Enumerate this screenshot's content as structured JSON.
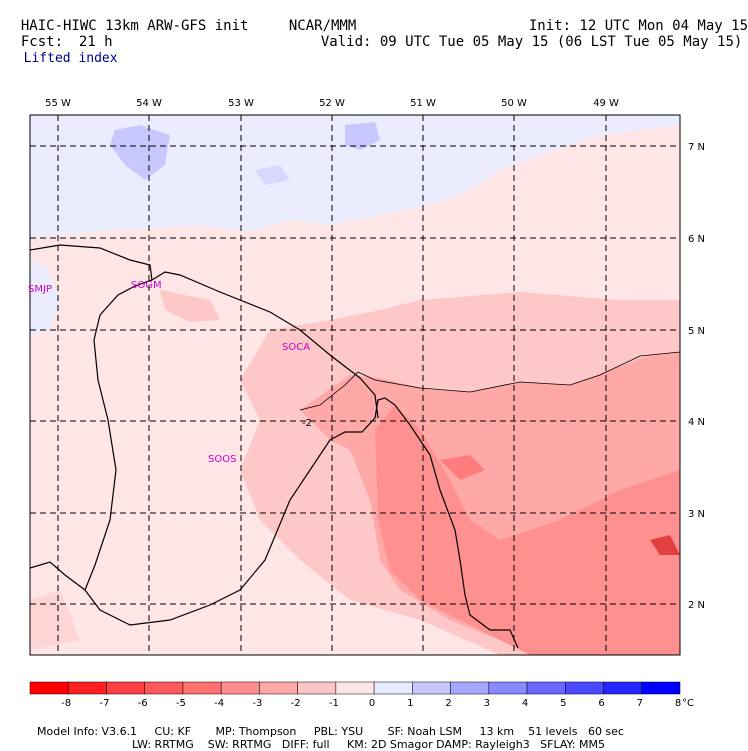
{
  "header": {
    "model_title": "HAIC-HIWC 13km ARW-GFS init",
    "center": "NCAR/MMM",
    "init_label": "Init: 12 UTC Mon 04 May 15",
    "fcst_label": "Fcst:",
    "fcst_value": "21 h",
    "valid_label": "Valid: 09 UTC Tue 05 May 15 (06 LST Tue 05 May 15)",
    "field_name": "Lifted index"
  },
  "map": {
    "longitudes": [
      "55 W",
      "54 W",
      "53 W",
      "52 W",
      "51 W",
      "50 W",
      "49 W"
    ],
    "latitudes": [
      "7 N",
      "6 N",
      "5 N",
      "4 N",
      "3 N",
      "2 N"
    ],
    "stations": [
      "SMJP",
      "SOGM",
      "SOCA",
      "SOOS"
    ],
    "contour_label": "-2"
  },
  "colorbar": {
    "ticks": [
      "-8",
      "-7",
      "-6",
      "-5",
      "-4",
      "-3",
      "-2",
      "-1",
      "0",
      "1",
      "2",
      "3",
      "4",
      "5",
      "6",
      "7",
      "8"
    ],
    "unit": "°C",
    "colors": [
      "#ff0000",
      "#ff2020",
      "#ff4040",
      "#ff5858",
      "#ff7070",
      "#ff8c8c",
      "#ffa8a8",
      "#ffc4c4",
      "#ffe6e6",
      "#e8e8ff",
      "#c8c8ff",
      "#a8a8ff",
      "#8888ff",
      "#6868ff",
      "#4848ff",
      "#2424ff",
      "#0000ff"
    ]
  },
  "footer": {
    "line1": "Model Info: V3.6.1     CU: KF       MP: Thompson     PBL: YSU       SF: Noah LSM     13 km    51 levels   60 sec",
    "line2": "LW: RRTMG    SW: RRTMG   DIFF: full     KM: 2D Smagor DAMP: Rayleigh3   SFLAY: MM5"
  }
}
